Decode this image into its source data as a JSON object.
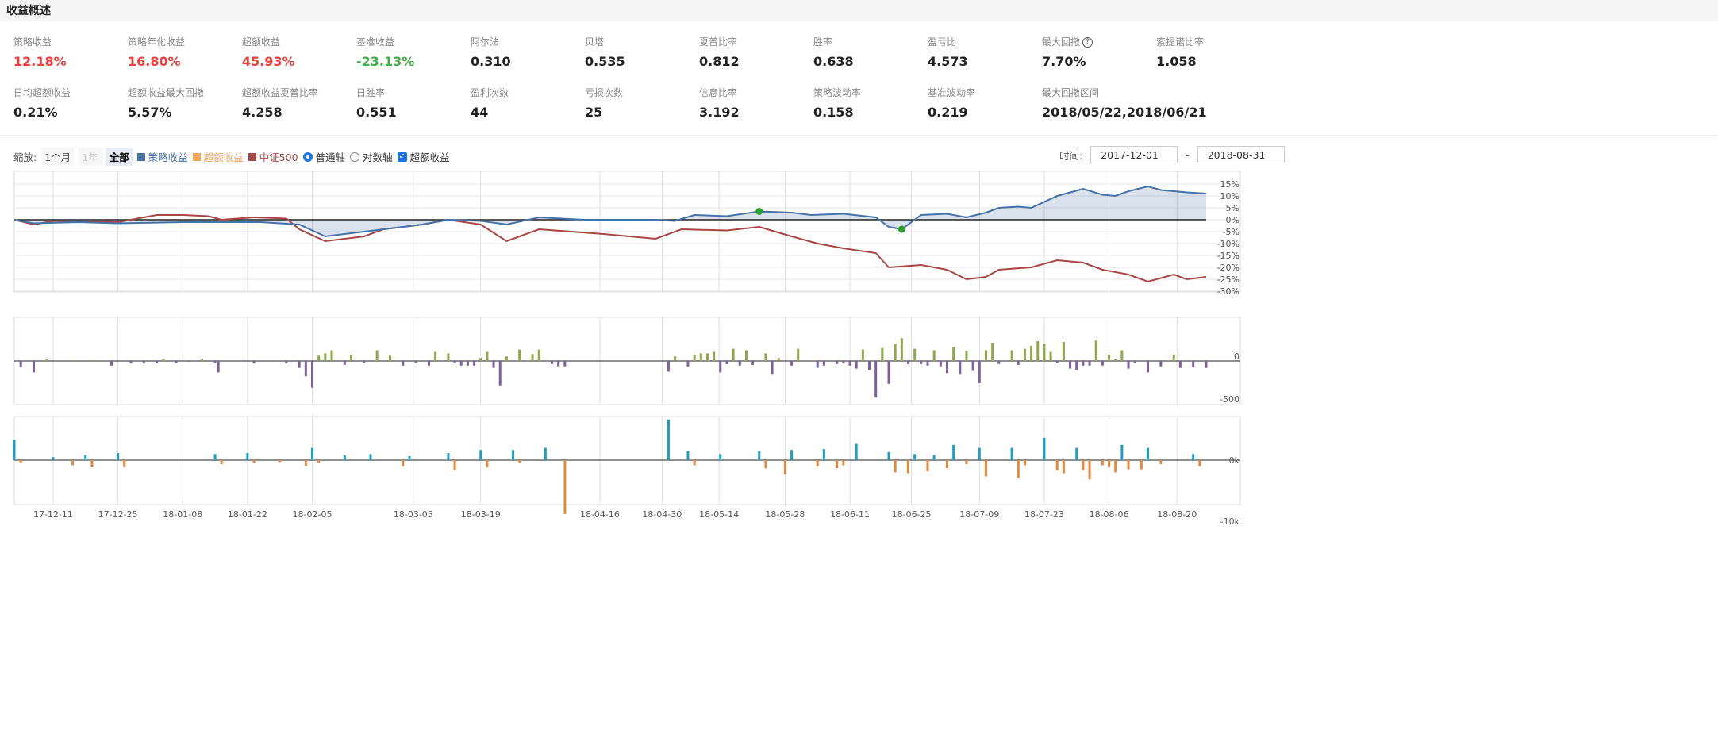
{
  "title": "收益概述",
  "stats_row1": [
    {
      "label": "策略收益",
      "value": "12.18%",
      "tone": "red"
    },
    {
      "label": "策略年化收益",
      "value": "16.80%",
      "tone": "red"
    },
    {
      "label": "超额收益",
      "value": "45.93%",
      "tone": "red"
    },
    {
      "label": "基准收益",
      "value": "-23.13%",
      "tone": "green"
    },
    {
      "label": "阿尔法",
      "value": "0.310"
    },
    {
      "label": "贝塔",
      "value": "0.535"
    },
    {
      "label": "夏普比率",
      "value": "0.812"
    },
    {
      "label": "胜率",
      "value": "0.638"
    },
    {
      "label": "盈亏比",
      "value": "4.573"
    },
    {
      "label": "最大回撤",
      "value": "7.70%",
      "help": "?"
    },
    {
      "label": "索提诺比率",
      "value": "1.058"
    }
  ],
  "stats_row2": [
    {
      "label": "日均超额收益",
      "value": "0.21%"
    },
    {
      "label": "超额收益最大回撤",
      "value": "5.57%"
    },
    {
      "label": "超额收益夏普比率",
      "value": "4.258"
    },
    {
      "label": "日胜率",
      "value": "0.551"
    },
    {
      "label": "盈利次数",
      "value": "44"
    },
    {
      "label": "亏损次数",
      "value": "25"
    },
    {
      "label": "信息比率",
      "value": "3.192"
    },
    {
      "label": "策略波动率",
      "value": "0.158"
    },
    {
      "label": "基准波动率",
      "value": "0.219"
    },
    {
      "label": "最大回撤区间",
      "value": "2018/05/22,2018/06/21"
    }
  ],
  "controls": {
    "zoom_label": "缩放:",
    "zoom_1m": "1个月",
    "zoom_1y": "1年",
    "zoom_all": "全部",
    "legend": [
      {
        "name": "策略收益",
        "color": "#4572a7"
      },
      {
        "name": "超额收益",
        "color": "#f7a35c"
      },
      {
        "name": "中证500",
        "color": "#aa4643"
      }
    ],
    "axis_normal": "普通轴",
    "axis_log": "对数轴",
    "excess_toggle": "超额收益",
    "time_label": "时间:",
    "start": "2017-12-01",
    "end": "2018-08-31",
    "sep": "-"
  },
  "chart_data": {
    "type": "line",
    "x_ticks": [
      {
        "i": 6,
        "t": "17-12-11"
      },
      {
        "i": 16,
        "t": "17-12-25"
      },
      {
        "i": 26,
        "t": "18-01-08"
      },
      {
        "i": 36,
        "t": "18-01-22"
      },
      {
        "i": 46,
        "t": "18-02-05"
      },
      {
        "i": 61.6,
        "t": "18-03-05"
      },
      {
        "i": 72,
        "t": "18-03-19"
      },
      {
        "i": 90.4,
        "t": "18-04-16"
      },
      {
        "i": 100,
        "t": "18-04-30"
      },
      {
        "i": 108.8,
        "t": "18-05-14"
      },
      {
        "i": 119,
        "t": "18-05-28"
      },
      {
        "i": 129,
        "t": "18-06-11"
      },
      {
        "i": 138.5,
        "t": "18-06-25"
      },
      {
        "i": 149,
        "t": "18-07-09"
      },
      {
        "i": 159,
        "t": "18-07-23"
      },
      {
        "i": 169,
        "t": "18-08-06"
      },
      {
        "i": 179.5,
        "t": "18-08-20"
      }
    ],
    "x_range": [
      0,
      184
    ],
    "y_ticks_main": [
      "15%",
      "10%",
      "5%",
      "0%",
      "-5%",
      "-10%",
      "-15%",
      "-20%",
      "-25%",
      "-30%"
    ],
    "y_ticks_excess": [
      "0",
      "-500"
    ],
    "y_ticks_pnl": [
      "0k",
      "-10k"
    ],
    "strategy": [
      [
        0,
        0
      ],
      [
        3,
        -1.5
      ],
      [
        10,
        -1
      ],
      [
        16,
        -1.5
      ],
      [
        26,
        -1
      ],
      [
        38,
        -1
      ],
      [
        44,
        -2
      ],
      [
        48,
        -7
      ],
      [
        54,
        -5
      ],
      [
        63,
        -2
      ],
      [
        67,
        0
      ],
      [
        72,
        -0.5
      ],
      [
        76,
        -2
      ],
      [
        81,
        1
      ],
      [
        88,
        0
      ],
      [
        99,
        0
      ],
      [
        102,
        -0.5
      ],
      [
        105,
        2
      ],
      [
        110,
        1.5
      ],
      [
        115,
        3.5
      ],
      [
        120,
        3
      ],
      [
        123,
        2
      ],
      [
        128,
        2.5
      ],
      [
        133,
        1
      ],
      [
        135,
        -3
      ],
      [
        137,
        -4
      ],
      [
        140,
        2
      ],
      [
        144,
        2.5
      ],
      [
        147,
        1
      ],
      [
        150,
        3
      ],
      [
        152,
        5
      ],
      [
        155,
        5.5
      ],
      [
        157,
        5
      ],
      [
        161,
        10
      ],
      [
        165,
        13
      ],
      [
        168,
        10.5
      ],
      [
        170,
        10
      ],
      [
        172,
        12
      ],
      [
        175,
        14
      ],
      [
        177,
        12.5
      ],
      [
        179,
        12
      ],
      [
        181,
        11.5
      ],
      [
        184,
        11
      ]
    ],
    "csi500": [
      [
        0,
        0
      ],
      [
        3,
        -2
      ],
      [
        6,
        -0.5
      ],
      [
        16,
        -1
      ],
      [
        20,
        1
      ],
      [
        22,
        2
      ],
      [
        26,
        2
      ],
      [
        30,
        1.5
      ],
      [
        32,
        0
      ],
      [
        37,
        1
      ],
      [
        42,
        0.5
      ],
      [
        44,
        -4
      ],
      [
        48,
        -9
      ],
      [
        51,
        -8
      ],
      [
        54,
        -7
      ],
      [
        57,
        -4
      ],
      [
        63,
        -2
      ],
      [
        67,
        0
      ],
      [
        72,
        -2
      ],
      [
        76,
        -9
      ],
      [
        81,
        -4
      ],
      [
        86,
        -5
      ],
      [
        91,
        -6
      ],
      [
        95,
        -7
      ],
      [
        99,
        -8
      ],
      [
        103,
        -4
      ],
      [
        110,
        -4.5
      ],
      [
        115,
        -3
      ],
      [
        120,
        -7
      ],
      [
        124,
        -10
      ],
      [
        128,
        -12
      ],
      [
        133,
        -14
      ],
      [
        135,
        -20
      ],
      [
        140,
        -19
      ],
      [
        144,
        -21
      ],
      [
        147,
        -25
      ],
      [
        150,
        -24
      ],
      [
        152,
        -21
      ],
      [
        157,
        -20
      ],
      [
        161,
        -17
      ],
      [
        165,
        -18
      ],
      [
        168,
        -21
      ],
      [
        172,
        -23
      ],
      [
        175,
        -26
      ],
      [
        179,
        -23
      ],
      [
        181,
        -25
      ],
      [
        184,
        -24
      ]
    ],
    "markers": [
      {
        "i": 115,
        "v": 3.5
      },
      {
        "i": 137,
        "v": -4
      }
    ],
    "excess_daily": [
      [
        1,
        -80
      ],
      [
        3,
        -150
      ],
      [
        5,
        20
      ],
      [
        9,
        10
      ],
      [
        12,
        10
      ],
      [
        15,
        -60
      ],
      [
        18,
        -30
      ],
      [
        20,
        -30
      ],
      [
        22,
        -30
      ],
      [
        23,
        20
      ],
      [
        25,
        -30
      ],
      [
        27,
        -10
      ],
      [
        29,
        20
      ],
      [
        31,
        -20
      ],
      [
        31.5,
        -150
      ],
      [
        37,
        -30
      ],
      [
        42,
        -30
      ],
      [
        44,
        -90
      ],
      [
        45,
        -200
      ],
      [
        46,
        -350
      ],
      [
        47,
        70
      ],
      [
        48,
        100
      ],
      [
        49,
        140
      ],
      [
        51,
        -50
      ],
      [
        52,
        80
      ],
      [
        54,
        -20
      ],
      [
        56,
        140
      ],
      [
        58,
        70
      ],
      [
        60,
        -60
      ],
      [
        62,
        -20
      ],
      [
        64,
        -60
      ],
      [
        65,
        120
      ],
      [
        67,
        100
      ],
      [
        68,
        -30
      ],
      [
        69,
        -60
      ],
      [
        70,
        -60
      ],
      [
        71,
        -60
      ],
      [
        72,
        40
      ],
      [
        73,
        120
      ],
      [
        74,
        -90
      ],
      [
        75,
        -320
      ],
      [
        76,
        60
      ],
      [
        78,
        150
      ],
      [
        80,
        90
      ],
      [
        81,
        150
      ],
      [
        83,
        -40
      ],
      [
        84,
        -70
      ],
      [
        85,
        -70
      ],
      [
        101,
        -140
      ],
      [
        102,
        60
      ],
      [
        104,
        -70
      ],
      [
        105,
        80
      ],
      [
        106,
        100
      ],
      [
        107,
        100
      ],
      [
        108,
        120
      ],
      [
        109,
        -150
      ],
      [
        110,
        -40
      ],
      [
        111,
        160
      ],
      [
        112,
        -60
      ],
      [
        113,
        140
      ],
      [
        114,
        -50
      ],
      [
        116,
        100
      ],
      [
        117,
        -180
      ],
      [
        118,
        40
      ],
      [
        120,
        -60
      ],
      [
        121,
        160
      ],
      [
        124,
        -90
      ],
      [
        125,
        -60
      ],
      [
        127,
        -40
      ],
      [
        128,
        -30
      ],
      [
        129,
        -60
      ],
      [
        130,
        -100
      ],
      [
        131,
        150
      ],
      [
        132,
        -120
      ],
      [
        133,
        -480
      ],
      [
        134,
        170
      ],
      [
        135,
        -300
      ],
      [
        136,
        220
      ],
      [
        137,
        300
      ],
      [
        138,
        -40
      ],
      [
        139,
        160
      ],
      [
        140,
        -40
      ],
      [
        141,
        -60
      ],
      [
        142,
        140
      ],
      [
        143,
        -70
      ],
      [
        144,
        -160
      ],
      [
        145,
        180
      ],
      [
        146,
        -180
      ],
      [
        147,
        130
      ],
      [
        148,
        -130
      ],
      [
        149,
        -290
      ],
      [
        150,
        140
      ],
      [
        151,
        240
      ],
      [
        152,
        -40
      ],
      [
        154,
        140
      ],
      [
        155,
        -50
      ],
      [
        156,
        160
      ],
      [
        157,
        200
      ],
      [
        158,
        260
      ],
      [
        159,
        220
      ],
      [
        160,
        120
      ],
      [
        161,
        -30
      ],
      [
        162,
        250
      ],
      [
        163,
        -100
      ],
      [
        164,
        -120
      ],
      [
        165,
        -60
      ],
      [
        166,
        -60
      ],
      [
        167,
        270
      ],
      [
        168,
        -60
      ],
      [
        169,
        80
      ],
      [
        170,
        30
      ],
      [
        171,
        140
      ],
      [
        172,
        -100
      ],
      [
        173,
        -30
      ],
      [
        175,
        -150
      ],
      [
        177,
        -70
      ],
      [
        179,
        80
      ],
      [
        180,
        -90
      ],
      [
        182,
        -80
      ],
      [
        184,
        -90
      ]
    ],
    "pnl_daily": [
      [
        0,
        2000
      ],
      [
        1,
        -300
      ],
      [
        6,
        300
      ],
      [
        9,
        -500
      ],
      [
        11,
        500
      ],
      [
        12,
        -700
      ],
      [
        16,
        700
      ],
      [
        17,
        -700
      ],
      [
        31,
        600
      ],
      [
        32,
        -400
      ],
      [
        36,
        700
      ],
      [
        37,
        -300
      ],
      [
        41,
        -200
      ],
      [
        45,
        -600
      ],
      [
        46,
        1200
      ],
      [
        47,
        -300
      ],
      [
        51,
        500
      ],
      [
        55,
        600
      ],
      [
        60,
        -600
      ],
      [
        61,
        400
      ],
      [
        67,
        700
      ],
      [
        68,
        -1000
      ],
      [
        72,
        1000
      ],
      [
        73,
        -700
      ],
      [
        77,
        1000
      ],
      [
        78,
        -300
      ],
      [
        82,
        1200
      ],
      [
        85,
        -5300
      ],
      [
        101,
        4000
      ],
      [
        104,
        900
      ],
      [
        105,
        -500
      ],
      [
        109,
        600
      ],
      [
        115,
        900
      ],
      [
        116,
        -800
      ],
      [
        119,
        -1400
      ],
      [
        120,
        1000
      ],
      [
        124,
        -600
      ],
      [
        125,
        1100
      ],
      [
        127,
        -800
      ],
      [
        128,
        -500
      ],
      [
        130,
        1600
      ],
      [
        135,
        800
      ],
      [
        136,
        -1200
      ],
      [
        138,
        -1300
      ],
      [
        139,
        600
      ],
      [
        141,
        -1100
      ],
      [
        142,
        500
      ],
      [
        144,
        -800
      ],
      [
        145,
        1500
      ],
      [
        147,
        -400
      ],
      [
        149,
        1200
      ],
      [
        150,
        -1600
      ],
      [
        154,
        1200
      ],
      [
        155,
        -1800
      ],
      [
        156,
        -500
      ],
      [
        159,
        2200
      ],
      [
        161,
        -1000
      ],
      [
        162,
        -1300
      ],
      [
        164,
        1200
      ],
      [
        165,
        -1000
      ],
      [
        166,
        -1900
      ],
      [
        168,
        -500
      ],
      [
        169,
        -700
      ],
      [
        170,
        -1200
      ],
      [
        171,
        1500
      ],
      [
        172,
        -900
      ],
      [
        174,
        -900
      ],
      [
        175,
        1200
      ],
      [
        177,
        -400
      ],
      [
        182,
        600
      ],
      [
        183,
        -600
      ]
    ]
  }
}
